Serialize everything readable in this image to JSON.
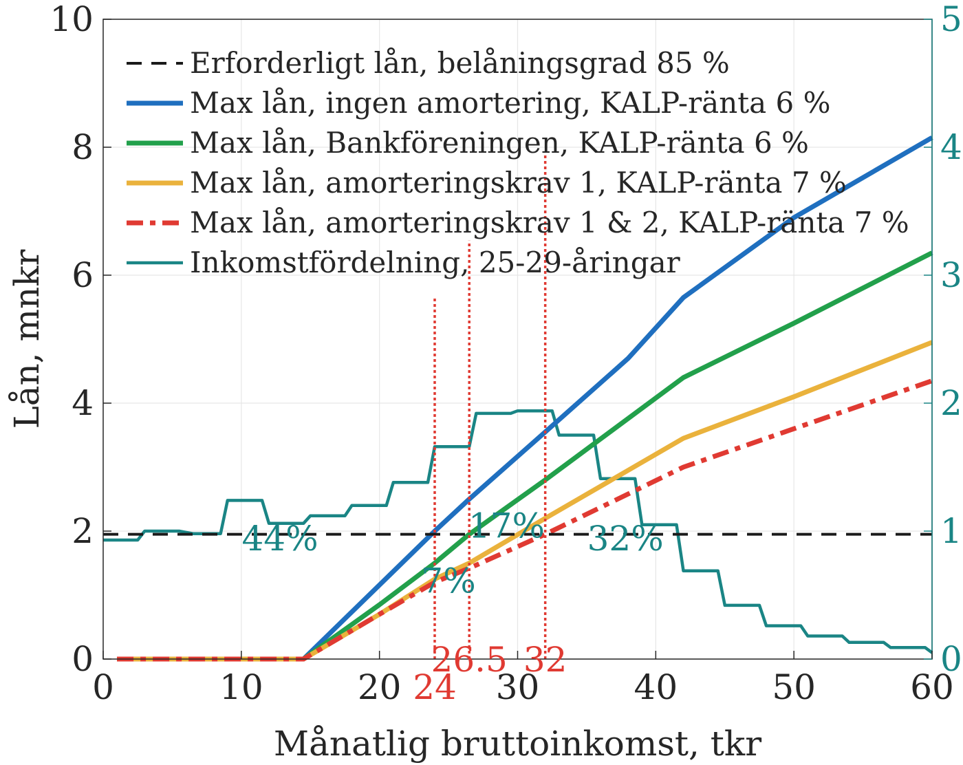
{
  "chart_data": {
    "type": "line",
    "xlabel": "Månatlig bruttoinkomst, tkr",
    "ylabel": "Lån, mnkr",
    "xlim": [
      0,
      60
    ],
    "ylim": [
      0,
      10
    ],
    "y2lim": [
      0,
      5
    ],
    "x_ticks": [
      "0",
      "10",
      "20",
      "30",
      "40",
      "50",
      "60"
    ],
    "y_ticks": [
      "0",
      "2",
      "4",
      "6",
      "8",
      "10"
    ],
    "y2_ticks": [
      "0",
      "1",
      "2",
      "3",
      "4",
      "5"
    ],
    "grid": true,
    "legend_position": "top-left",
    "colors": {
      "black": "#1a1a1a",
      "blue": "#1f6fbf",
      "green": "#22a04b",
      "yellow": "#eab23c",
      "red": "#e03a32",
      "teal": "#1a8585"
    },
    "series": [
      {
        "name": "Erforderligt lån, belåningsgrad 85 %",
        "color": "black",
        "style": "dashed",
        "axis": "left",
        "x": [
          0,
          60
        ],
        "y": [
          1.95,
          1.95
        ]
      },
      {
        "name": "Max lån, ingen amortering, KALP-ränta 6 %",
        "color": "blue",
        "style": "solid",
        "axis": "left",
        "x": [
          1,
          14.5,
          24,
          26.5,
          32,
          38,
          42,
          50,
          60
        ],
        "y": [
          0,
          0,
          2.0,
          2.5,
          3.55,
          4.7,
          5.65,
          6.9,
          8.15
        ]
      },
      {
        "name": "Max lån, Bankföreningen, KALP-ränta 6 %",
        "color": "green",
        "style": "solid",
        "axis": "left",
        "x": [
          1,
          14.5,
          20,
          24,
          26.5,
          32,
          42,
          50,
          60
        ],
        "y": [
          0,
          0,
          0.85,
          1.5,
          1.95,
          2.8,
          4.4,
          5.25,
          6.35
        ]
      },
      {
        "name": "Max lån, amorteringskrav 1, KALP-ränta 7 %",
        "color": "yellow",
        "style": "solid",
        "axis": "left",
        "x": [
          1,
          14.5,
          20,
          24,
          26.5,
          32,
          42,
          50,
          60
        ],
        "y": [
          0,
          0,
          0.7,
          1.25,
          1.5,
          2.2,
          3.45,
          4.1,
          4.95
        ]
      },
      {
        "name": "Max lån, amorteringskrav 1 & 2, KALP-ränta 7 %",
        "color": "red",
        "style": "dashdot",
        "axis": "left",
        "x": [
          1,
          14.5,
          20,
          24,
          26.5,
          32,
          42,
          50,
          60
        ],
        "y": [
          0,
          0,
          0.7,
          1.2,
          1.42,
          1.95,
          3.0,
          3.6,
          4.35
        ]
      },
      {
        "name": "Inkomstfördelning, 25-29-åringar",
        "color": "teal",
        "style": "step",
        "axis": "right",
        "x": [
          0,
          2.5,
          3,
          5.5,
          6.5,
          8.5,
          9,
          11.5,
          12,
          14.5,
          15,
          17.5,
          18,
          20.5,
          21,
          23.5,
          24,
          26.5,
          27,
          29.5,
          30,
          32.5,
          33,
          35.5,
          36,
          38.5,
          39,
          41.5,
          42,
          44.5,
          45,
          47.5,
          48,
          50.5,
          51,
          53.5,
          54,
          56.5,
          57,
          59.5,
          60
        ],
        "y": [
          0.93,
          0.93,
          1.0,
          1.0,
          0.98,
          0.98,
          1.24,
          1.24,
          1.06,
          1.06,
          1.12,
          1.12,
          1.2,
          1.2,
          1.38,
          1.38,
          1.66,
          1.66,
          1.92,
          1.92,
          1.94,
          1.94,
          1.75,
          1.75,
          1.41,
          1.41,
          1.05,
          1.05,
          0.69,
          0.69,
          0.42,
          0.42,
          0.26,
          0.26,
          0.18,
          0.18,
          0.13,
          0.13,
          0.09,
          0.09,
          0.05
        ]
      }
    ],
    "vlines": [
      {
        "x": 24,
        "y_top": 2.82,
        "label": "24"
      },
      {
        "x": 26.5,
        "y_top": 3.27,
        "label": "26.5"
      },
      {
        "x": 32,
        "y_top": 3.95,
        "label": "32"
      }
    ],
    "annotations": [
      {
        "text": "44%",
        "x": 12.8,
        "y": 0.85
      },
      {
        "text": "7%",
        "x": 25.0,
        "y": 0.52
      },
      {
        "text": "17%",
        "x": 29.2,
        "y": 0.95
      },
      {
        "text": "32%",
        "x": 37.8,
        "y": 0.85
      }
    ]
  }
}
